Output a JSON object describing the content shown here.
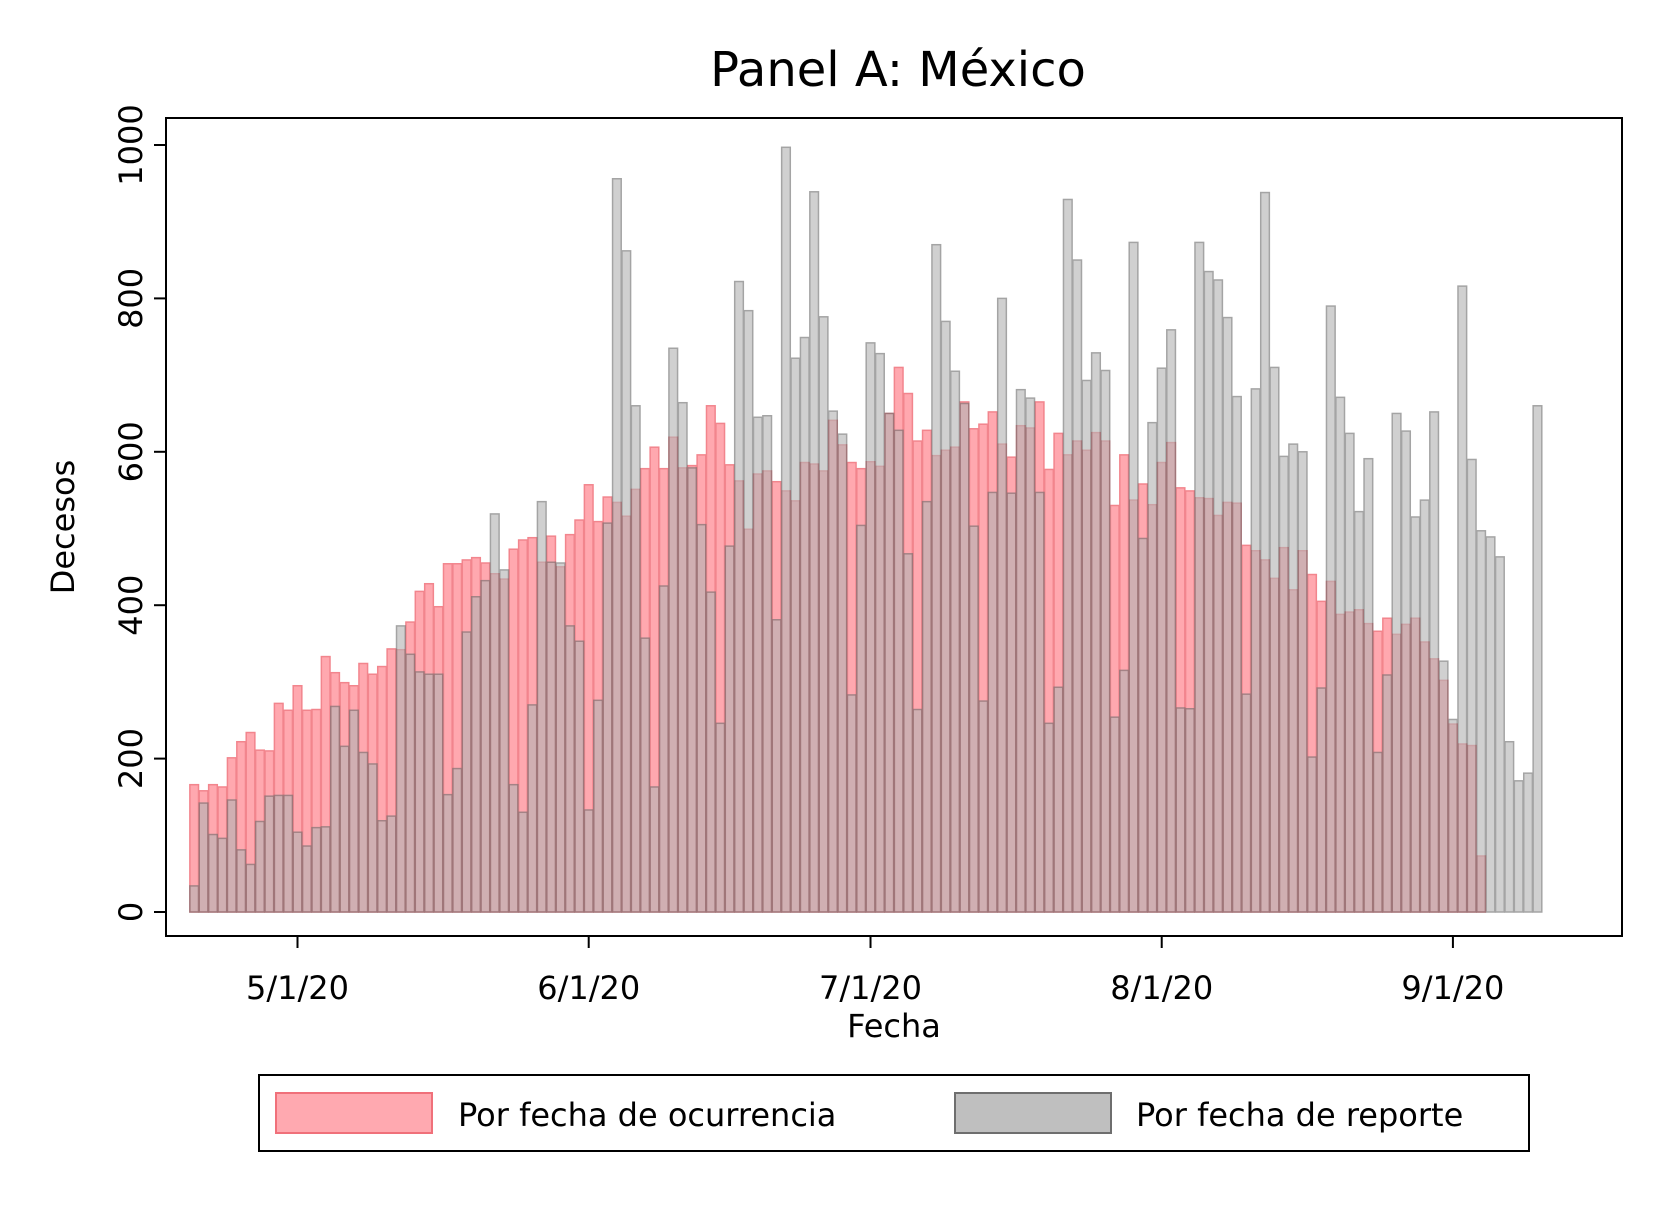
{
  "chart_data": {
    "type": "bar",
    "title": "Panel A: México",
    "xlabel": "Fecha",
    "ylabel": "Decesos",
    "ylim": [
      0,
      1000
    ],
    "yticks": [
      0,
      200,
      400,
      600,
      800,
      1000
    ],
    "xlim": [
      "2020-04-17",
      "2020-09-19"
    ],
    "xticks": [
      {
        "date": "2020-05-01",
        "label": "5/1/20"
      },
      {
        "date": "2020-06-01",
        "label": "6/1/20"
      },
      {
        "date": "2020-07-01",
        "label": "7/1/20"
      },
      {
        "date": "2020-08-01",
        "label": "8/1/20"
      },
      {
        "date": "2020-09-01",
        "label": "9/1/20"
      }
    ],
    "start_date": "2020-04-20",
    "legend_position": "bottom",
    "grid": false,
    "series": [
      {
        "name": "Por fecha de ocurrencia",
        "color": "#ff9aa2",
        "stroke": "#f0707a",
        "values": [
          166,
          158,
          166,
          163,
          201,
          222,
          234,
          211,
          210,
          272,
          263,
          295,
          263,
          264,
          333,
          312,
          299,
          295,
          324,
          310,
          320,
          343,
          342,
          378,
          418,
          428,
          398,
          454,
          454,
          459,
          462,
          455,
          441,
          434,
          473,
          485,
          488,
          456,
          490,
          450,
          492,
          511,
          557,
          509,
          541,
          534,
          516,
          551,
          578,
          606,
          578,
          619,
          579,
          582,
          596,
          660,
          637,
          583,
          562,
          499,
          571,
          575,
          561,
          549,
          536,
          586,
          584,
          575,
          641,
          609,
          586,
          578,
          587,
          581,
          650,
          710,
          676,
          614,
          628,
          595,
          602,
          606,
          665,
          630,
          636,
          652,
          610,
          593,
          634,
          631,
          665,
          577,
          624,
          596,
          614,
          602,
          625,
          614,
          530,
          596,
          537,
          558,
          531,
          586,
          612,
          553,
          549,
          540,
          539,
          517,
          534,
          533,
          478,
          471,
          459,
          435,
          475,
          420,
          471,
          440,
          405,
          431,
          388,
          391,
          394,
          376,
          366,
          383,
          362,
          375,
          383,
          352,
          330,
          302,
          245,
          219,
          217,
          73,
          0
        ],
        "values_note": ""
      },
      {
        "name": "Por fecha de reporte",
        "color": "#b4b4b4",
        "stroke": "#6e6e6e",
        "values": [
          34,
          142,
          101,
          96,
          146,
          81,
          62,
          118,
          151,
          152,
          152,
          104,
          86,
          110,
          111,
          268,
          216,
          263,
          208,
          193,
          119,
          125,
          373,
          336,
          313,
          310,
          310,
          153,
          187,
          365,
          411,
          432,
          519,
          446,
          166,
          130,
          270,
          535,
          456,
          455,
          373,
          353,
          133,
          276,
          507,
          956,
          862,
          660,
          357,
          163,
          425,
          735,
          664,
          579,
          505,
          417,
          246,
          477,
          822,
          784,
          645,
          647,
          381,
          997,
          722,
          749,
          939,
          776,
          653,
          623,
          283,
          504,
          742,
          728,
          650,
          628,
          467,
          264,
          535,
          870,
          770,
          705,
          663,
          503,
          275,
          547,
          800,
          546,
          681,
          670,
          547,
          246,
          293,
          929,
          850,
          693,
          729,
          706,
          254,
          315,
          873,
          487,
          638,
          709,
          759,
          266,
          265,
          873,
          835,
          824,
          775,
          672,
          284,
          682,
          938,
          710,
          594,
          610,
          600,
          202,
          292,
          790,
          671,
          624,
          522,
          591,
          208,
          309,
          650,
          627,
          515,
          537,
          652,
          327,
          251,
          816,
          590,
          497,
          489,
          463,
          222,
          171,
          181,
          660
        ]
      }
    ]
  }
}
